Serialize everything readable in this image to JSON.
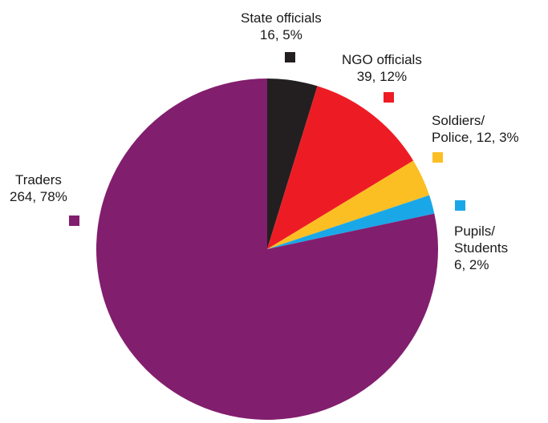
{
  "chart_data": {
    "type": "pie",
    "title": "",
    "start_angle_deg": 0,
    "direction": "clockwise",
    "slices": [
      {
        "id": "state",
        "label_lines": [
          "State officials",
          "16, 5%"
        ],
        "value": 16,
        "percent": 5,
        "color": "#231f20"
      },
      {
        "id": "ngo",
        "label_lines": [
          "NGO officials",
          "39, 12%"
        ],
        "value": 39,
        "percent": 12,
        "color": "#ed1c24"
      },
      {
        "id": "soldiers",
        "label_lines": [
          "Soldiers/",
          "Police, 12, 3%"
        ],
        "value": 12,
        "percent": 3,
        "color": "#fbbf24"
      },
      {
        "id": "pupils",
        "label_lines": [
          "Pupils/",
          "Students",
          "6, 2%"
        ],
        "value": 6,
        "percent": 2,
        "color": "#1aa7e8"
      },
      {
        "id": "traders",
        "label_lines": [
          "Traders",
          "264, 78%"
        ],
        "value": 264,
        "percent": 78,
        "color": "#821e6e"
      }
    ]
  }
}
